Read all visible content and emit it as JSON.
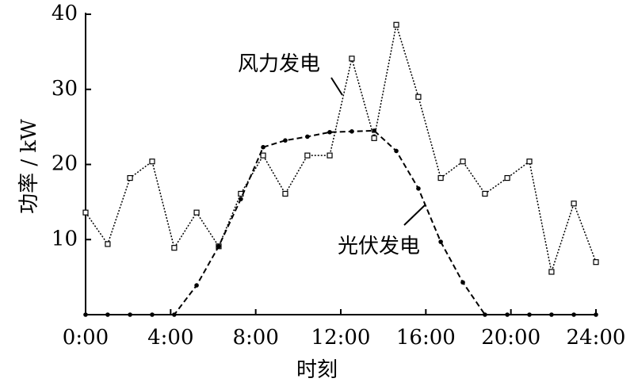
{
  "chart_data": {
    "type": "line",
    "x_label": "时刻",
    "y_label": "功率 / kW",
    "x": [
      0,
      1.04,
      2.09,
      3.13,
      4.17,
      5.22,
      6.26,
      7.3,
      8.35,
      9.39,
      10.43,
      11.48,
      12.52,
      13.57,
      14.61,
      15.65,
      16.7,
      17.74,
      18.78,
      19.83,
      20.87,
      21.91,
      22.96,
      24
    ],
    "series": [
      {
        "name": "风力发电",
        "color": "#000",
        "marker": "square",
        "dash": "dot",
        "values": [
          13.6,
          9.4,
          18.2,
          20.4,
          8.9,
          13.6,
          9.1,
          16.1,
          21.2,
          16.1,
          21.2,
          21.2,
          34.1,
          23.5,
          38.6,
          29.0,
          18.2,
          20.4,
          16.1,
          18.2,
          20.4,
          5.7,
          14.8,
          7.0
        ]
      },
      {
        "name": "光伏发电",
        "color": "#000",
        "marker": "circle",
        "dash": "dash",
        "values": [
          0,
          0,
          0,
          0,
          0,
          3.9,
          9.1,
          15.4,
          22.3,
          23.2,
          23.7,
          24.3,
          24.4,
          24.5,
          21.8,
          16.8,
          9.7,
          4.3,
          0,
          0,
          0,
          0,
          0,
          0
        ]
      }
    ],
    "xlim": [
      0,
      24
    ],
    "xticks": [
      {
        "value": 0,
        "label": "0:00"
      },
      {
        "value": 4,
        "label": "4:00"
      },
      {
        "value": 8,
        "label": "8:00"
      },
      {
        "value": 12,
        "label": "12:00"
      },
      {
        "value": 16,
        "label": "16:00"
      },
      {
        "value": 20,
        "label": "20:00"
      },
      {
        "value": 24,
        "label": "24:00"
      }
    ],
    "ylim": [
      0,
      40
    ],
    "yticks": [
      10,
      20,
      30,
      40
    ],
    "grid": false
  }
}
